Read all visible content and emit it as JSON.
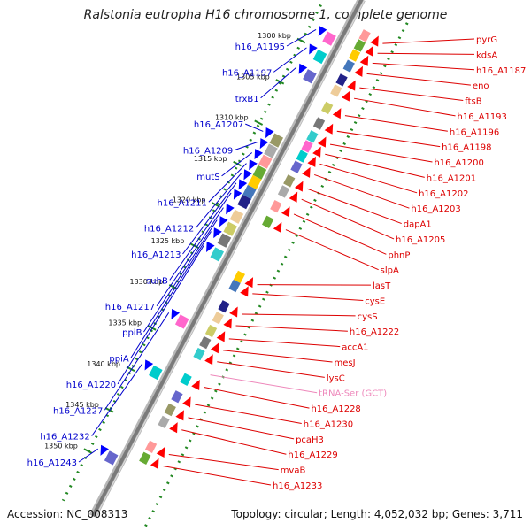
{
  "title": "Ralstonia eutropha H16 chromosome 1, complete genome",
  "footer": {
    "accession": "Accession: NC_008313",
    "topology": "Topology: circular; Length: 4,052,032 bp; Genes: 3,711"
  },
  "colors": {
    "forward_label": "#0000cc",
    "reverse_label": "#dd0000",
    "trna_label": "#ee88bb",
    "forward_arrow": "#0000ff",
    "reverse_arrow": "#ff0000",
    "ruler": "#228822"
  },
  "scale": {
    "ticks": [
      {
        "label": "1300 kbp",
        "kbp": 1300
      },
      {
        "label": "1305 kbp",
        "kbp": 1305
      },
      {
        "label": "1310 kbp",
        "kbp": 1310
      },
      {
        "label": "1315 kbp",
        "kbp": 1315
      },
      {
        "label": "1320 kbp",
        "kbp": 1320
      },
      {
        "label": "1325 kbp",
        "kbp": 1325
      },
      {
        "label": "1330 kbp",
        "kbp": 1330
      },
      {
        "label": "1335 kbp",
        "kbp": 1335
      },
      {
        "label": "1340 kbp",
        "kbp": 1340
      },
      {
        "label": "1345 kbp",
        "kbp": 1345
      },
      {
        "label": "1350 kbp",
        "kbp": 1350
      }
    ]
  },
  "forward_genes": [
    {
      "label": "h16_A1195",
      "kbp": 1298.2
    },
    {
      "label": "h16_A1197",
      "kbp": 1300.4
    },
    {
      "label": "trxB1",
      "kbp": 1302.8
    },
    {
      "label": "h16_A1207",
      "kbp": 1310.6
    },
    {
      "label": "h16_A1209",
      "kbp": 1311.9
    },
    {
      "label": "mutS",
      "kbp": 1313.2
    },
    {
      "label": "h16_A1211",
      "kbp": 1314.5
    },
    {
      "label": "h16_A1212",
      "kbp": 1315.7
    },
    {
      "label": "h16_A1213",
      "kbp": 1316.9
    },
    {
      "label": "suhB",
      "kbp": 1318.1
    },
    {
      "label": "h16_A1217",
      "kbp": 1319.9
    },
    {
      "label": "ppiB",
      "kbp": 1321.4
    },
    {
      "label": "ppiA",
      "kbp": 1322.8
    },
    {
      "label": "h16_A1220",
      "kbp": 1324.5
    },
    {
      "label": "h16_A1227",
      "kbp": 1332.7
    },
    {
      "label": "h16_A1232",
      "kbp": 1338.9
    },
    {
      "label": "h16_A1243",
      "kbp": 1349.3
    }
  ],
  "reverse_genes": [
    {
      "label": "pyrG",
      "kbp": 1296.2
    },
    {
      "label": "kdsA",
      "kbp": 1297.4
    },
    {
      "label": "h16_A1187",
      "kbp": 1298.6
    },
    {
      "label": "eno",
      "kbp": 1299.9
    },
    {
      "label": "ftsB",
      "kbp": 1301.6
    },
    {
      "label": "h16_A1193",
      "kbp": 1302.9
    },
    {
      "label": "h16_A1196",
      "kbp": 1305.0
    },
    {
      "label": "h16_A1198",
      "kbp": 1306.9
    },
    {
      "label": "h16_A1200",
      "kbp": 1308.5
    },
    {
      "label": "h16_A1201",
      "kbp": 1309.7
    },
    {
      "label": "h16_A1202",
      "kbp": 1310.9
    },
    {
      "label": "h16_A1203",
      "kbp": 1312.2
    },
    {
      "label": "dapA1",
      "kbp": 1313.9
    },
    {
      "label": "h16_A1205",
      "kbp": 1315.2
    },
    {
      "label": "phnP",
      "kbp": 1317.0
    },
    {
      "label": "slpA",
      "kbp": 1318.9
    },
    {
      "label": "lasT",
      "kbp": 1325.6
    },
    {
      "label": "cysE",
      "kbp": 1326.7
    },
    {
      "label": "cysS",
      "kbp": 1329.2
    },
    {
      "label": "h16_A1222",
      "kbp": 1330.6
    },
    {
      "label": "accA1",
      "kbp": 1332.2
    },
    {
      "label": "mesJ",
      "kbp": 1333.6
    },
    {
      "label": "lysC",
      "kbp": 1335.0
    },
    {
      "label": "tRNA-Ser (GCT)",
      "kbp": 1336.6,
      "trna": true
    },
    {
      "label": "h16_A1228",
      "kbp": 1338.1
    },
    {
      "label": "h16_A1230",
      "kbp": 1340.2
    },
    {
      "label": "pcaH3",
      "kbp": 1341.8
    },
    {
      "label": "h16_A1229",
      "kbp": 1343.3
    },
    {
      "label": "mvaB",
      "kbp": 1346.3
    },
    {
      "label": "h16_A1233",
      "kbp": 1347.7
    }
  ]
}
